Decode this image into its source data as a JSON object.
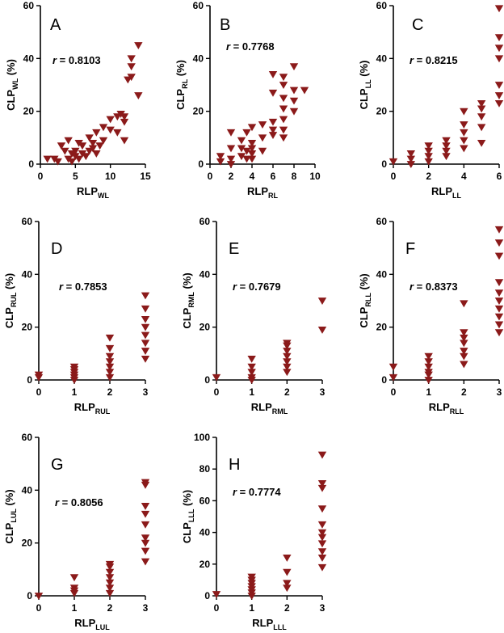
{
  "colors": {
    "marker": "#8b1a1a",
    "axis": "#000000"
  },
  "chart_data": [
    {
      "type": "scatter",
      "panel": "A",
      "ylabel": {
        "main": "CLP",
        "sub": "WL",
        "suffix": " (%)"
      },
      "xlabel": {
        "main": "RLP",
        "sub": "WL"
      },
      "r_text": "= 0.8103",
      "xlim": [
        0,
        15
      ],
      "ylim": [
        0,
        60
      ],
      "xticks": [
        0,
        5,
        10,
        15
      ],
      "yticks": [
        0,
        20,
        40,
        60
      ],
      "points": [
        [
          1,
          2
        ],
        [
          2,
          2
        ],
        [
          2.5,
          1
        ],
        [
          3,
          7
        ],
        [
          3.5,
          5
        ],
        [
          4,
          2
        ],
        [
          4,
          9
        ],
        [
          4.5,
          4
        ],
        [
          4.5,
          1
        ],
        [
          5,
          3
        ],
        [
          5,
          5
        ],
        [
          5.5,
          8
        ],
        [
          5.5,
          2
        ],
        [
          6,
          4
        ],
        [
          6,
          7
        ],
        [
          6.5,
          3
        ],
        [
          7,
          5
        ],
        [
          7,
          10
        ],
        [
          7.5,
          6
        ],
        [
          7.5,
          8
        ],
        [
          8,
          4
        ],
        [
          8,
          12
        ],
        [
          8.5,
          7
        ],
        [
          9,
          14
        ],
        [
          9,
          9
        ],
        [
          10,
          13
        ],
        [
          10,
          17
        ],
        [
          11,
          12
        ],
        [
          11,
          18
        ],
        [
          11.5,
          19
        ],
        [
          12,
          9
        ],
        [
          12,
          16
        ],
        [
          12,
          18
        ],
        [
          12.5,
          32
        ],
        [
          13,
          33
        ],
        [
          13,
          37
        ],
        [
          13,
          40
        ],
        [
          14,
          26
        ],
        [
          14,
          45
        ]
      ]
    },
    {
      "type": "scatter",
      "panel": "B",
      "ylabel": {
        "main": "CLP",
        "sub": "RL",
        "suffix": " (%)"
      },
      "xlabel": {
        "main": "RLP",
        "sub": "RL"
      },
      "r_text": "= 0.7768",
      "xlim": [
        0,
        10
      ],
      "ylim": [
        0,
        60
      ],
      "xticks": [
        0,
        2,
        4,
        6,
        8,
        10
      ],
      "yticks": [
        0,
        20,
        40,
        60
      ],
      "points": [
        [
          1,
          1
        ],
        [
          1,
          3
        ],
        [
          2,
          0
        ],
        [
          2,
          2
        ],
        [
          2,
          6
        ],
        [
          2,
          12
        ],
        [
          3,
          3
        ],
        [
          3,
          6
        ],
        [
          3,
          9
        ],
        [
          3.5,
          2
        ],
        [
          3.5,
          5
        ],
        [
          3.5,
          12
        ],
        [
          4,
          2
        ],
        [
          4,
          4
        ],
        [
          4,
          6
        ],
        [
          4,
          8
        ],
        [
          4,
          14
        ],
        [
          5,
          5
        ],
        [
          5,
          10
        ],
        [
          5,
          15
        ],
        [
          6,
          11
        ],
        [
          6,
          13
        ],
        [
          6,
          16
        ],
        [
          6,
          27
        ],
        [
          6,
          34
        ],
        [
          7,
          10
        ],
        [
          7,
          13
        ],
        [
          7,
          17
        ],
        [
          7,
          21
        ],
        [
          7,
          25
        ],
        [
          7,
          30
        ],
        [
          7,
          33
        ],
        [
          8,
          20
        ],
        [
          8,
          24
        ],
        [
          8,
          28
        ],
        [
          8,
          37
        ],
        [
          9,
          28
        ]
      ]
    },
    {
      "type": "scatter",
      "panel": "C",
      "ylabel": {
        "main": "CLP",
        "sub": "LL",
        "suffix": " (%)"
      },
      "xlabel": {
        "main": "RLP",
        "sub": "LL"
      },
      "r_text": "= 0.8215",
      "xlim": [
        0,
        6
      ],
      "ylim": [
        0,
        60
      ],
      "xticks": [
        0,
        2,
        4,
        6
      ],
      "yticks": [
        0,
        20,
        40,
        60
      ],
      "points": [
        [
          0,
          1
        ],
        [
          1,
          0
        ],
        [
          1,
          2
        ],
        [
          1,
          4
        ],
        [
          2,
          1
        ],
        [
          2,
          3
        ],
        [
          2,
          5
        ],
        [
          2,
          7
        ],
        [
          3,
          3
        ],
        [
          3,
          5
        ],
        [
          3,
          7
        ],
        [
          3,
          9
        ],
        [
          4,
          6
        ],
        [
          4,
          9
        ],
        [
          4,
          12
        ],
        [
          4,
          15
        ],
        [
          4,
          20
        ],
        [
          5,
          8
        ],
        [
          5,
          14
        ],
        [
          5,
          18
        ],
        [
          5,
          21
        ],
        [
          5,
          23
        ],
        [
          6,
          23
        ],
        [
          6,
          26
        ],
        [
          6,
          30
        ],
        [
          6,
          40
        ],
        [
          6,
          44
        ],
        [
          6,
          48
        ],
        [
          6,
          59
        ]
      ]
    },
    {
      "type": "scatter",
      "panel": "D",
      "ylabel": {
        "main": "CLP",
        "sub": "RUL",
        "suffix": " (%)"
      },
      "xlabel": {
        "main": "RLP",
        "sub": "RUL"
      },
      "r_text": "= 0.7853",
      "xlim": [
        0,
        3
      ],
      "ylim": [
        0,
        60
      ],
      "xticks": [
        0,
        1,
        2,
        3
      ],
      "yticks": [
        0,
        20,
        40,
        60
      ],
      "points": [
        [
          0,
          1
        ],
        [
          0,
          2
        ],
        [
          1,
          0
        ],
        [
          1,
          1
        ],
        [
          1,
          2
        ],
        [
          1,
          3
        ],
        [
          1,
          4
        ],
        [
          1,
          5
        ],
        [
          2,
          1
        ],
        [
          2,
          3
        ],
        [
          2,
          5
        ],
        [
          2,
          7
        ],
        [
          2,
          9
        ],
        [
          2,
          12
        ],
        [
          2,
          16
        ],
        [
          3,
          8
        ],
        [
          3,
          11
        ],
        [
          3,
          14
        ],
        [
          3,
          17
        ],
        [
          3,
          20
        ],
        [
          3,
          23
        ],
        [
          3,
          27
        ],
        [
          3,
          32
        ]
      ]
    },
    {
      "type": "scatter",
      "panel": "E",
      "ylabel": {
        "main": "CLP",
        "sub": "RML",
        "suffix": " (%)"
      },
      "xlabel": {
        "main": "RLP",
        "sub": "RML"
      },
      "r_text": "= 0.7679",
      "xlim": [
        0,
        3
      ],
      "ylim": [
        0,
        60
      ],
      "xticks": [
        0,
        1,
        2,
        3
      ],
      "yticks": [
        0,
        20,
        40,
        60
      ],
      "points": [
        [
          0,
          1
        ],
        [
          1,
          0
        ],
        [
          1,
          1
        ],
        [
          1,
          3
        ],
        [
          1,
          5
        ],
        [
          1,
          8
        ],
        [
          2,
          3
        ],
        [
          2,
          5
        ],
        [
          2,
          7
        ],
        [
          2,
          9
        ],
        [
          2,
          11
        ],
        [
          2,
          13
        ],
        [
          2,
          14
        ],
        [
          3,
          19
        ],
        [
          3,
          30
        ]
      ]
    },
    {
      "type": "scatter",
      "panel": "F",
      "ylabel": {
        "main": "CLP",
        "sub": "RLL",
        "suffix": " (%)"
      },
      "xlabel": {
        "main": "RLP",
        "sub": "RLL"
      },
      "r_text": "= 0.8373",
      "xlim": [
        0,
        3
      ],
      "ylim": [
        0,
        60
      ],
      "xticks": [
        0,
        1,
        2,
        3
      ],
      "yticks": [
        0,
        20,
        40,
        60
      ],
      "points": [
        [
          0,
          1
        ],
        [
          0,
          5
        ],
        [
          1,
          0
        ],
        [
          1,
          2
        ],
        [
          1,
          3
        ],
        [
          1,
          5
        ],
        [
          1,
          7
        ],
        [
          1,
          9
        ],
        [
          2,
          6
        ],
        [
          2,
          9
        ],
        [
          2,
          11
        ],
        [
          2,
          14
        ],
        [
          2,
          16
        ],
        [
          2,
          18
        ],
        [
          2,
          29
        ],
        [
          3,
          18
        ],
        [
          3,
          21
        ],
        [
          3,
          24
        ],
        [
          3,
          27
        ],
        [
          3,
          30
        ],
        [
          3,
          33
        ],
        [
          3,
          37
        ],
        [
          3,
          47
        ],
        [
          3,
          52
        ],
        [
          3,
          57
        ]
      ]
    },
    {
      "type": "scatter",
      "panel": "G",
      "ylabel": {
        "main": "CLP",
        "sub": "LUL",
        "suffix": " (%)"
      },
      "xlabel": {
        "main": "RLP",
        "sub": "LUL"
      },
      "r_text": "= 0.8056",
      "xlim": [
        0,
        3
      ],
      "ylim": [
        0,
        60
      ],
      "xticks": [
        0,
        1,
        2,
        3
      ],
      "yticks": [
        0,
        20,
        40,
        60
      ],
      "points": [
        [
          0,
          0
        ],
        [
          1,
          1
        ],
        [
          1,
          2
        ],
        [
          1,
          3
        ],
        [
          1,
          7
        ],
        [
          2,
          1
        ],
        [
          2,
          3
        ],
        [
          2,
          5
        ],
        [
          2,
          7
        ],
        [
          2,
          9
        ],
        [
          2,
          11
        ],
        [
          2,
          12
        ],
        [
          3,
          13
        ],
        [
          3,
          17
        ],
        [
          3,
          20
        ],
        [
          3,
          22
        ],
        [
          3,
          27
        ],
        [
          3,
          31
        ],
        [
          3,
          34
        ],
        [
          3,
          42
        ],
        [
          3,
          43
        ]
      ]
    },
    {
      "type": "scatter",
      "panel": "H",
      "ylabel": {
        "main": "CLP",
        "sub": "LLL",
        "suffix": " (%)"
      },
      "xlabel": {
        "main": "RLP",
        "sub": "LLL"
      },
      "r_text": "= 0.7774",
      "xlim": [
        0,
        3
      ],
      "ylim": [
        0,
        100
      ],
      "xticks": [
        0,
        1,
        2,
        3
      ],
      "yticks": [
        0,
        20,
        40,
        60,
        80,
        100
      ],
      "points": [
        [
          0,
          1
        ],
        [
          1,
          0
        ],
        [
          1,
          2
        ],
        [
          1,
          4
        ],
        [
          1,
          6
        ],
        [
          1,
          8
        ],
        [
          1,
          10
        ],
        [
          1,
          12
        ],
        [
          2,
          5
        ],
        [
          2,
          8
        ],
        [
          2,
          15
        ],
        [
          2,
          24
        ],
        [
          3,
          18
        ],
        [
          3,
          24
        ],
        [
          3,
          28
        ],
        [
          3,
          33
        ],
        [
          3,
          37
        ],
        [
          3,
          40
        ],
        [
          3,
          45
        ],
        [
          3,
          55
        ],
        [
          3,
          68
        ],
        [
          3,
          71
        ],
        [
          3,
          89
        ]
      ]
    }
  ]
}
